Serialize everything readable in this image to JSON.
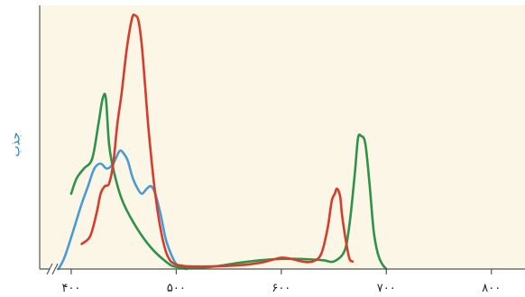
{
  "chart_data": {
    "type": "line",
    "title": "",
    "xlabel": "",
    "ylabel": "جذب",
    "xlim": [
      370,
      820
    ],
    "ylim": [
      0,
      1.0
    ],
    "x_ticks": [
      {
        "value": 400,
        "label": "۴۰۰"
      },
      {
        "value": 500,
        "label": "۵۰۰"
      },
      {
        "value": 600,
        "label": "۶۰۰"
      },
      {
        "value": 700,
        "label": "۷۰۰"
      },
      {
        "value": 800,
        "label": "۸۰۰"
      }
    ],
    "axis_break": true,
    "grid": false,
    "legend": "none",
    "background_color": "#fbf6e6",
    "axis_color": "#555555",
    "ylabel_color": "#1f78c8",
    "series": [
      {
        "color": "#2e9248",
        "x": [
          400,
          405,
          412,
          420,
          426,
          430,
          433,
          436,
          440,
          448,
          460,
          475,
          490,
          500,
          520,
          540,
          560,
          580,
          600,
          620,
          640,
          650,
          660,
          665,
          670,
          673,
          676,
          680,
          684,
          688,
          692,
          696,
          700
        ],
        "y": [
          0.3,
          0.36,
          0.4,
          0.44,
          0.58,
          0.68,
          0.68,
          0.5,
          0.4,
          0.28,
          0.18,
          0.09,
          0.03,
          0.008,
          0.005,
          0.012,
          0.025,
          0.035,
          0.04,
          0.04,
          0.035,
          0.03,
          0.07,
          0.18,
          0.38,
          0.52,
          0.53,
          0.5,
          0.34,
          0.15,
          0.06,
          0.02,
          0.0
        ]
      },
      {
        "color": "#d63c2c",
        "x": [
          410,
          418,
          424,
          428,
          432,
          436,
          440,
          444,
          448,
          453,
          458,
          461,
          464,
          467,
          470,
          474,
          480,
          486,
          492,
          500,
          520,
          560,
          580,
          590,
          600,
          610,
          620,
          630,
          638,
          644,
          648,
          651,
          653,
          656,
          658,
          662,
          665,
          668
        ],
        "y": [
          0.1,
          0.13,
          0.22,
          0.3,
          0.33,
          0.34,
          0.42,
          0.58,
          0.7,
          0.88,
          1.0,
          1.01,
          0.99,
          0.9,
          0.75,
          0.54,
          0.3,
          0.14,
          0.05,
          0.018,
          0.01,
          0.015,
          0.025,
          0.035,
          0.045,
          0.04,
          0.03,
          0.03,
          0.06,
          0.16,
          0.27,
          0.3,
          0.32,
          0.29,
          0.21,
          0.1,
          0.04,
          0.03
        ]
      },
      {
        "color": "#4a9ad4",
        "x": [
          388,
          393,
          398,
          404,
          410,
          416,
          422,
          428,
          434,
          440,
          446,
          450,
          454,
          458,
          462,
          467,
          472,
          476,
          480,
          485,
          490,
          495,
          500,
          505,
          510
        ],
        "y": [
          0.0,
          0.04,
          0.1,
          0.18,
          0.26,
          0.33,
          0.4,
          0.42,
          0.4,
          0.42,
          0.47,
          0.46,
          0.43,
          0.37,
          0.33,
          0.3,
          0.32,
          0.33,
          0.3,
          0.22,
          0.12,
          0.06,
          0.02,
          0.005,
          0.0
        ]
      }
    ]
  }
}
